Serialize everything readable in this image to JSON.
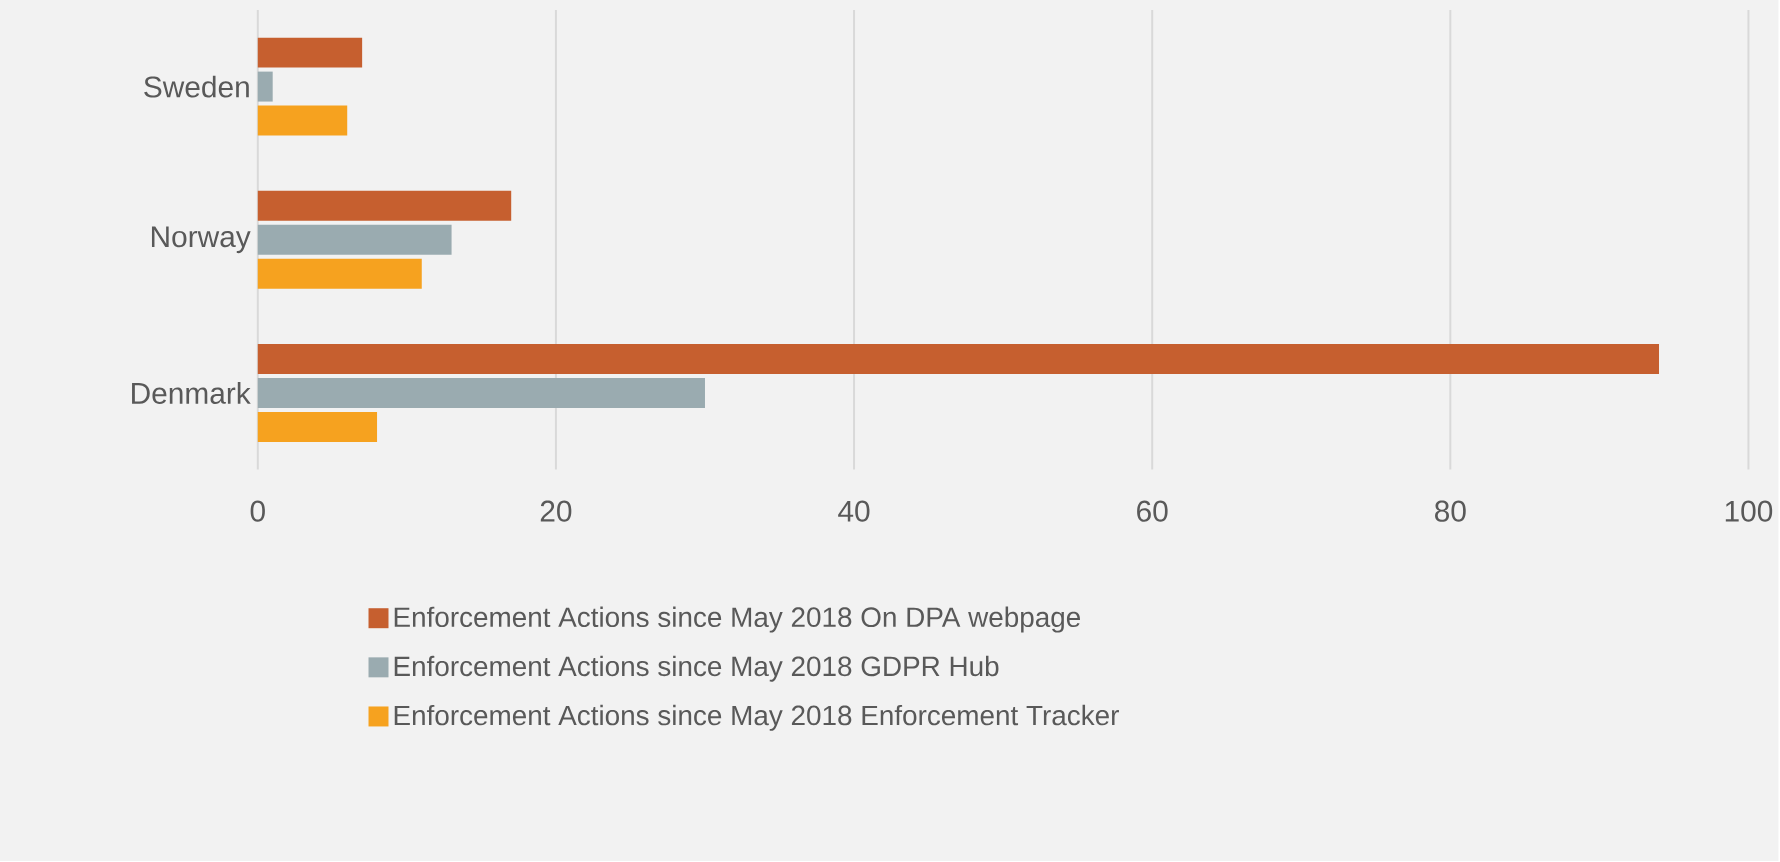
{
  "chart_data": {
    "type": "bar",
    "orientation": "horizontal",
    "categories": [
      "Sweden",
      "Norway",
      "Denmark"
    ],
    "series": [
      {
        "name": "Enforcement Actions since May 2018 On DPA webpage",
        "color": "#c65f2f",
        "values": [
          7,
          17,
          94
        ]
      },
      {
        "name": "Enforcement Actions since May 2018 GDPR Hub",
        "color": "#9aabb0",
        "values": [
          1,
          13,
          30
        ]
      },
      {
        "name": "Enforcement Actions since May 2018 Enforcement Tracker",
        "color": "#f6a21f",
        "values": [
          6,
          11,
          8
        ]
      }
    ],
    "xlim": [
      0,
      100
    ],
    "xticks": [
      0,
      20,
      40,
      60,
      80,
      100
    ],
    "grid": "x",
    "legend": "bottom"
  }
}
